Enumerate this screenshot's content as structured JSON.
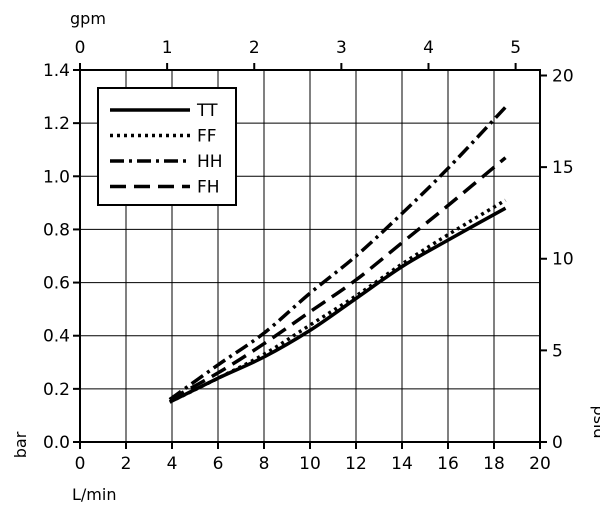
{
  "chart_data": {
    "type": "line",
    "title": "",
    "xlabel": "L/min",
    "ylabel": "bar",
    "x2label": "gpm",
    "y2label": "psid",
    "xlim": [
      0,
      20
    ],
    "ylim": [
      0,
      1.4
    ],
    "x2lim": [
      0,
      5.28
    ],
    "y2lim": [
      0,
      20.3
    ],
    "xticks": [
      "0",
      "2",
      "4",
      "6",
      "8",
      "10",
      "12",
      "14",
      "16",
      "18",
      "20"
    ],
    "yticks": [
      "0.0",
      "0.2",
      "0.4",
      "0.6",
      "0.8",
      "1.0",
      "1.2",
      "1.4"
    ],
    "x2ticks": [
      "0",
      "1",
      "2",
      "3",
      "4",
      "5"
    ],
    "y2ticks": [
      "0",
      "5",
      "10",
      "15",
      "20"
    ],
    "grid": true,
    "legend_position": "top-left",
    "series": [
      {
        "name": "TT",
        "dash": "solid",
        "x": [
          3.9,
          6,
          8,
          10,
          12,
          14,
          16,
          18.5
        ],
        "y": [
          0.15,
          0.24,
          0.32,
          0.42,
          0.54,
          0.66,
          0.76,
          0.88
        ]
      },
      {
        "name": "FF",
        "dash": "dotted",
        "x": [
          3.9,
          6,
          8,
          10,
          12,
          14,
          16,
          18.5
        ],
        "y": [
          0.15,
          0.24,
          0.33,
          0.44,
          0.55,
          0.67,
          0.78,
          0.91
        ]
      },
      {
        "name": "HH",
        "dash": "dashdot",
        "x": [
          3.9,
          6,
          8,
          10,
          12,
          14,
          16,
          18.5
        ],
        "y": [
          0.16,
          0.29,
          0.41,
          0.56,
          0.7,
          0.86,
          1.03,
          1.26
        ]
      },
      {
        "name": "FH",
        "dash": "dashed",
        "x": [
          3.9,
          6,
          8,
          10,
          12,
          14,
          16,
          18.5
        ],
        "y": [
          0.16,
          0.26,
          0.37,
          0.49,
          0.61,
          0.75,
          0.89,
          1.07
        ]
      }
    ]
  }
}
